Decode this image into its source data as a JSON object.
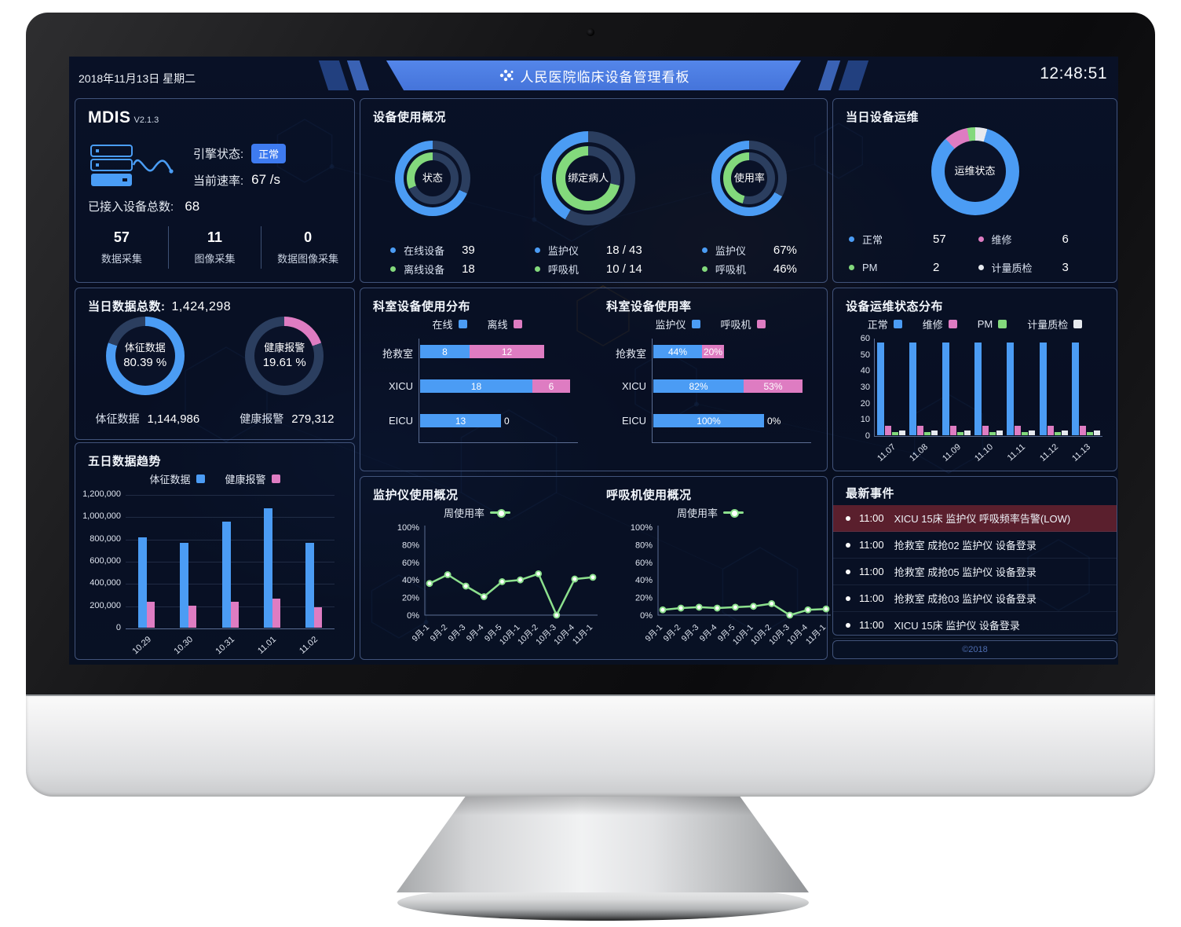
{
  "header": {
    "date": "2018年11月13日 星期二",
    "title": "人民医院临床设备管理看板",
    "title_icon": "dots-cluster-icon",
    "time": "12:48:51"
  },
  "colors": {
    "blue": "#4b9cf4",
    "green": "#83d97c",
    "pink": "#de7cc2",
    "white": "#e6e9ee",
    "ring_bg": "#2b3e5f",
    "hole": "#0a1228",
    "line_green": "#8ce08d",
    "axis": "#5b6d93",
    "tick": "#dfe5f0",
    "badge_blue": "#3e7bf0",
    "alert_row_bg": "#5a1f2d"
  },
  "mdis": {
    "title": "MDIS",
    "version": "V2.1.3",
    "engine_label": "引擎状态:",
    "engine_status": "正常",
    "rate_label": "当前速率:",
    "rate_value": "67 /s",
    "total_label": "已接入设备总数:",
    "total_value": "68",
    "stats": [
      {
        "value": "57",
        "label": "数据采集"
      },
      {
        "value": "11",
        "label": "图像采集"
      },
      {
        "value": "0",
        "label": "数据图像采集"
      }
    ]
  },
  "panels": {
    "usage_title": "设备使用概况",
    "maintenance_title": "当日设备运维"
  },
  "data_today": {
    "label": "当日数据总数:",
    "value": "1,424,298",
    "items": [
      {
        "label": "体征数据",
        "value": "1,144,986"
      },
      {
        "label": "健康报警",
        "value": "279,312"
      }
    ]
  },
  "events": {
    "title": "最新事件",
    "items": [
      {
        "time": "11:00",
        "text": "XICU 15床 监护仪 呼吸频率告警(LOW)",
        "alert": true
      },
      {
        "time": "11:00",
        "text": "抢救室 成抢02 监护仪 设备登录",
        "alert": false
      },
      {
        "time": "11:00",
        "text": "抢救室 成抢05 监护仪 设备登录",
        "alert": false
      },
      {
        "time": "11:00",
        "text": "抢救室 成抢03 监护仪 设备登录",
        "alert": false
      },
      {
        "time": "11:00",
        "text": "XICU 15床 监护仪 设备登录",
        "alert": false
      }
    ]
  },
  "footer_text": "©2018",
  "chart_data": [
    {
      "id": "usage_status_donut",
      "type": "pie",
      "center_label": "状态",
      "size": 96,
      "rings": [
        {
          "series": "在线设备",
          "value": 39,
          "pct": 68.4,
          "color": "blue"
        },
        {
          "series": "离线设备",
          "value": 18,
          "pct": 31.6,
          "color": "green"
        }
      ],
      "legend": [
        {
          "label": "在线设备",
          "value": "39",
          "color": "blue"
        },
        {
          "label": "离线设备",
          "value": "18",
          "color": "green"
        }
      ]
    },
    {
      "id": "bound_patient_donut",
      "type": "pie",
      "center_label": "绑定病人",
      "size": 120,
      "rings": [
        {
          "series": "监护仪",
          "value": "18 / 43",
          "pct": 41.9,
          "color": "blue"
        },
        {
          "series": "呼吸机",
          "value": "10 / 14",
          "pct": 71.4,
          "color": "green"
        }
      ],
      "legend": [
        {
          "label": "监护仪",
          "value": "18 / 43",
          "color": "blue"
        },
        {
          "label": "呼吸机",
          "value": "10 / 14",
          "color": "green"
        }
      ]
    },
    {
      "id": "usage_rate_donut",
      "type": "pie",
      "center_label": "使用率",
      "size": 96,
      "rings": [
        {
          "series": "监护仪",
          "value": "67%",
          "pct": 67,
          "color": "blue"
        },
        {
          "series": "呼吸机",
          "value": "46%",
          "pct": 46,
          "color": "green"
        }
      ],
      "legend": [
        {
          "label": "监护仪",
          "value": "67%",
          "color": "blue"
        },
        {
          "label": "呼吸机",
          "value": "46%",
          "color": "green"
        }
      ]
    },
    {
      "id": "maintenance_status_donut",
      "type": "pie",
      "center_label": "运维状态",
      "size": 112,
      "segments_clockwise": [
        {
          "label": "计量质检",
          "value": 3,
          "pct": 4.4,
          "color": "white"
        },
        {
          "label": "正常",
          "value": 57,
          "pct": 83.8,
          "color": "blue"
        },
        {
          "label": "维修",
          "value": 6,
          "pct": 8.8,
          "color": "pink"
        },
        {
          "label": "PM",
          "value": 2,
          "pct": 3.0,
          "color": "green"
        }
      ],
      "legend": [
        {
          "label": "正常",
          "value": "57",
          "color": "blue"
        },
        {
          "label": "维修",
          "value": "6",
          "color": "pink"
        },
        {
          "label": "PM",
          "value": "2",
          "color": "green"
        },
        {
          "label": "计量质检",
          "value": "3",
          "color": "white"
        }
      ]
    },
    {
      "id": "vital_data_donut",
      "type": "pie",
      "center_label": "体征数据",
      "center_pct": "80.39 %",
      "pct": 80.39,
      "color": "blue",
      "size": 100
    },
    {
      "id": "health_alarm_donut",
      "type": "pie",
      "center_label": "健康报警",
      "center_pct": "19.61 %",
      "pct": 19.61,
      "color": "pink",
      "size": 100
    },
    {
      "id": "five_day_trend",
      "type": "bar",
      "title": "五日数据趋势",
      "categories": [
        "10.29",
        "10.30",
        "10.31",
        "11.01",
        "11.02"
      ],
      "series": [
        {
          "name": "体征数据",
          "color": "blue",
          "values": [
            810000,
            760000,
            955000,
            1070000,
            760000
          ]
        },
        {
          "name": "健康报警",
          "color": "pink",
          "values": [
            230000,
            200000,
            230000,
            260000,
            180000
          ]
        }
      ],
      "ylim": [
        0,
        1200000
      ],
      "ytick_labels": [
        "1,200,000",
        "1,000,000",
        "800,000",
        "600,000",
        "400,000",
        "200,000",
        "0"
      ]
    },
    {
      "id": "dept_distribution",
      "type": "bar",
      "orientation": "horizontal",
      "title": "科室设备使用分布",
      "categories": [
        "抢救室",
        "XICU",
        "EICU"
      ],
      "series": [
        {
          "name": "在线",
          "color": "blue",
          "values": [
            8,
            18,
            13
          ]
        },
        {
          "name": "离线",
          "color": "pink",
          "values": [
            12,
            6,
            0
          ]
        }
      ],
      "xmax": 24,
      "value_suffix": ""
    },
    {
      "id": "dept_usage_rate",
      "type": "bar",
      "orientation": "horizontal",
      "title": "科室设备使用率",
      "categories": [
        "抢救室",
        "XICU",
        "EICU"
      ],
      "series": [
        {
          "name": "监护仪",
          "color": "blue",
          "values": [
            44,
            82,
            100
          ]
        },
        {
          "name": "呼吸机",
          "color": "pink",
          "values": [
            20,
            53,
            0
          ]
        }
      ],
      "xmax": 135,
      "value_suffix": "%"
    },
    {
      "id": "maintenance_distribution",
      "type": "bar",
      "title": "设备运维状态分布",
      "categories": [
        "11.07",
        "11.08",
        "11.09",
        "11.10",
        "11.11",
        "11.12",
        "11.13"
      ],
      "series": [
        {
          "name": "正常",
          "color": "blue",
          "values": [
            57,
            57,
            57,
            57,
            57,
            57,
            57
          ]
        },
        {
          "name": "维修",
          "color": "pink",
          "values": [
            6,
            6,
            6,
            6,
            6,
            6,
            6
          ]
        },
        {
          "name": "PM",
          "color": "green",
          "values": [
            2,
            2,
            2,
            2,
            2,
            2,
            2
          ]
        },
        {
          "name": "计量质检",
          "color": "white",
          "values": [
            3,
            3,
            3,
            3,
            3,
            3,
            3
          ]
        }
      ],
      "ylim": [
        0,
        60
      ],
      "ytick_labels": [
        "60",
        "50",
        "40",
        "30",
        "20",
        "10",
        "0"
      ]
    },
    {
      "id": "monitor_usage_line",
      "type": "line",
      "title": "监护仪使用概况",
      "legend": "周使用率",
      "x": [
        "9月-1",
        "9月-2",
        "9月-3",
        "9月-4",
        "9月-5",
        "10月-1",
        "10月-2",
        "10月-3",
        "10月-4",
        "11月-1"
      ],
      "values": [
        36,
        46,
        33,
        21,
        38,
        40,
        47,
        0,
        41,
        43
      ],
      "ylim": [
        0,
        100
      ],
      "ytick_labels": [
        "100%",
        "80%",
        "60%",
        "40%",
        "20%",
        "0%"
      ]
    },
    {
      "id": "ventilator_usage_line",
      "type": "line",
      "title": "呼吸机使用概况",
      "legend": "周使用率",
      "x": [
        "9月-1",
        "9月-2",
        "9月-3",
        "9月-4",
        "9月-5",
        "10月-1",
        "10月-2",
        "10月-3",
        "10月-4",
        "11月-1"
      ],
      "values": [
        6,
        8,
        9,
        8,
        9,
        10,
        13,
        0,
        6,
        7
      ],
      "ylim": [
        0,
        100
      ],
      "ytick_labels": [
        "100%",
        "80%",
        "60%",
        "40%",
        "20%",
        "0%"
      ]
    }
  ]
}
